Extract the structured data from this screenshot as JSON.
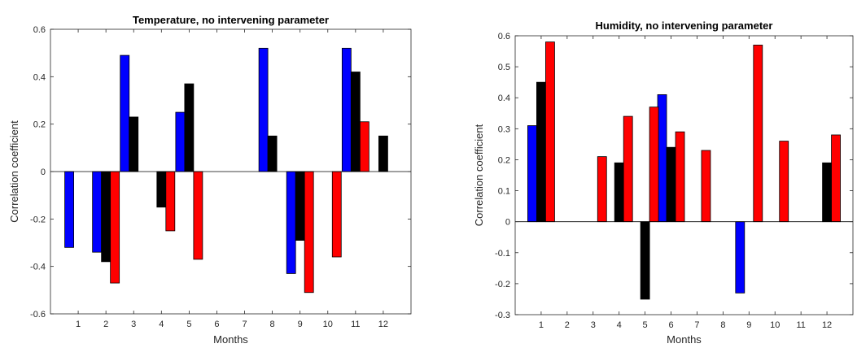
{
  "chart_data": [
    {
      "type": "bar",
      "title": "Temperature, no intervening parameter",
      "xlabel": "Months",
      "ylabel": "Correlation coefficient",
      "categories": [
        "1",
        "2",
        "3",
        "4",
        "5",
        "6",
        "7",
        "8",
        "9",
        "10",
        "11",
        "12"
      ],
      "ylim": [
        -0.6,
        0.6
      ],
      "yticks": [
        -0.6,
        -0.4,
        -0.2,
        0,
        0.2,
        0.4,
        0.6
      ],
      "ytick_labels": [
        "-0.6",
        "-0.4",
        "-0.2",
        "0",
        "0.2",
        "0.4",
        "0.6"
      ],
      "grid": false,
      "series": [
        {
          "color": "#0000ff",
          "values": [
            -0.32,
            -0.34,
            0.49,
            0,
            0.25,
            0,
            0,
            0.52,
            -0.43,
            0,
            0.52,
            0
          ]
        },
        {
          "color": "#000000",
          "values": [
            0,
            -0.38,
            0.23,
            -0.15,
            0.37,
            0,
            0,
            0.15,
            -0.29,
            0,
            0.42,
            0.15
          ]
        },
        {
          "color": "#ff0000",
          "values": [
            0,
            -0.47,
            0,
            -0.25,
            -0.37,
            0,
            0,
            0,
            -0.51,
            -0.36,
            0.21,
            0
          ]
        }
      ]
    },
    {
      "type": "bar",
      "title": "Humidity, no intervening parameter",
      "xlabel": "Months",
      "ylabel": "Correlation coefficient",
      "categories": [
        "1",
        "2",
        "3",
        "4",
        "5",
        "6",
        "7",
        "8",
        "9",
        "10",
        "11",
        "12"
      ],
      "ylim": [
        -0.3,
        0.6
      ],
      "yticks": [
        -0.3,
        -0.2,
        -0.1,
        0,
        0.1,
        0.2,
        0.3,
        0.4,
        0.5,
        0.6
      ],
      "ytick_labels": [
        "-0.3",
        "-0.2",
        "-0.1",
        "0",
        "0.1",
        "0.2",
        "0.3",
        "0.4",
        "0.5",
        "0.6"
      ],
      "grid": false,
      "series": [
        {
          "color": "#0000ff",
          "values": [
            0.31,
            0,
            0,
            0,
            0,
            0.41,
            0,
            0,
            -0.23,
            0,
            0,
            0
          ]
        },
        {
          "color": "#000000",
          "values": [
            0.45,
            0,
            0,
            0.19,
            -0.25,
            0.24,
            0,
            0,
            0,
            0,
            0,
            0.19
          ]
        },
        {
          "color": "#ff0000",
          "values": [
            0.58,
            0,
            0.21,
            0.34,
            0.37,
            0.29,
            0.23,
            0,
            0.57,
            0.26,
            0,
            0.28
          ]
        }
      ]
    }
  ]
}
